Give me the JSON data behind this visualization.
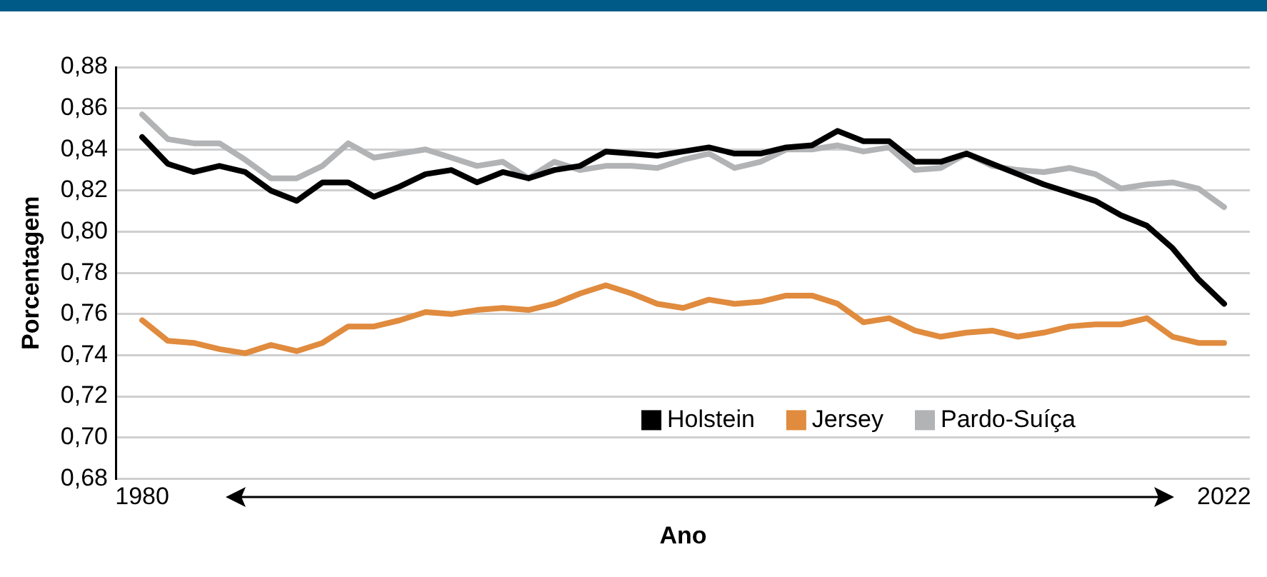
{
  "chart_data": {
    "type": "line",
    "xlabel": "Ano",
    "ylabel": "Porcentagem",
    "x": [
      1980,
      1981,
      1982,
      1983,
      1984,
      1985,
      1986,
      1987,
      1988,
      1989,
      1990,
      1991,
      1992,
      1993,
      1994,
      1995,
      1996,
      1997,
      1998,
      1999,
      2000,
      2001,
      2002,
      2003,
      2004,
      2005,
      2006,
      2007,
      2008,
      2009,
      2010,
      2011,
      2012,
      2013,
      2014,
      2015,
      2016,
      2017,
      2018,
      2019,
      2020,
      2021,
      2022
    ],
    "series": [
      {
        "name": "Holstein",
        "color": "#000000",
        "values": [
          0.846,
          0.833,
          0.829,
          0.832,
          0.829,
          0.82,
          0.815,
          0.824,
          0.824,
          0.817,
          0.822,
          0.828,
          0.83,
          0.824,
          0.829,
          0.826,
          0.83,
          0.832,
          0.839,
          0.838,
          0.837,
          0.839,
          0.841,
          0.838,
          0.838,
          0.841,
          0.842,
          0.849,
          0.844,
          0.844,
          0.834,
          0.834,
          0.838,
          0.833,
          0.828,
          0.823,
          0.819,
          0.815,
          0.808,
          0.803,
          0.792,
          0.777,
          0.765
        ]
      },
      {
        "name": "Jersey",
        "color": "#e08b3e",
        "values": [
          0.757,
          0.747,
          0.746,
          0.743,
          0.741,
          0.745,
          0.742,
          0.746,
          0.754,
          0.754,
          0.757,
          0.761,
          0.76,
          0.762,
          0.763,
          0.762,
          0.765,
          0.77,
          0.774,
          0.77,
          0.765,
          0.763,
          0.767,
          0.765,
          0.766,
          0.769,
          0.769,
          0.765,
          0.756,
          0.758,
          0.752,
          0.749,
          0.751,
          0.752,
          0.749,
          0.751,
          0.754,
          0.755,
          0.755,
          0.758,
          0.749,
          0.746,
          0.746
        ]
      },
      {
        "name": "Pardo-Suíça",
        "color": "#b1b3b5",
        "values": [
          0.857,
          0.845,
          0.843,
          0.843,
          0.835,
          0.826,
          0.826,
          0.832,
          0.843,
          0.836,
          0.838,
          0.84,
          0.836,
          0.832,
          0.834,
          0.826,
          0.834,
          0.83,
          0.832,
          0.832,
          0.831,
          0.835,
          0.838,
          0.831,
          0.834,
          0.84,
          0.84,
          0.842,
          0.839,
          0.841,
          0.83,
          0.831,
          0.838,
          0.832,
          0.83,
          0.829,
          0.831,
          0.828,
          0.821,
          0.823,
          0.824,
          0.821,
          0.812
        ]
      }
    ],
    "xlim": [
      1979,
      2023
    ],
    "xticks": [
      1980,
      2022
    ],
    "ylim": [
      0.68,
      0.88
    ],
    "yticks": [
      {
        "value": 0.68,
        "label": "0,68"
      },
      {
        "value": 0.7,
        "label": "0,70"
      },
      {
        "value": 0.72,
        "label": "0,72"
      },
      {
        "value": 0.74,
        "label": "0,74"
      },
      {
        "value": 0.76,
        "label": "0,76"
      },
      {
        "value": 0.78,
        "label": "0,78"
      },
      {
        "value": 0.8,
        "label": "0,80"
      },
      {
        "value": 0.82,
        "label": "0,82"
      },
      {
        "value": 0.84,
        "label": "0,84"
      },
      {
        "value": 0.86,
        "label": "0,86"
      },
      {
        "value": 0.88,
        "label": "0,88"
      }
    ],
    "grid": "y",
    "legend": "bottom right",
    "marker": "none",
    "line_style": "solid"
  }
}
